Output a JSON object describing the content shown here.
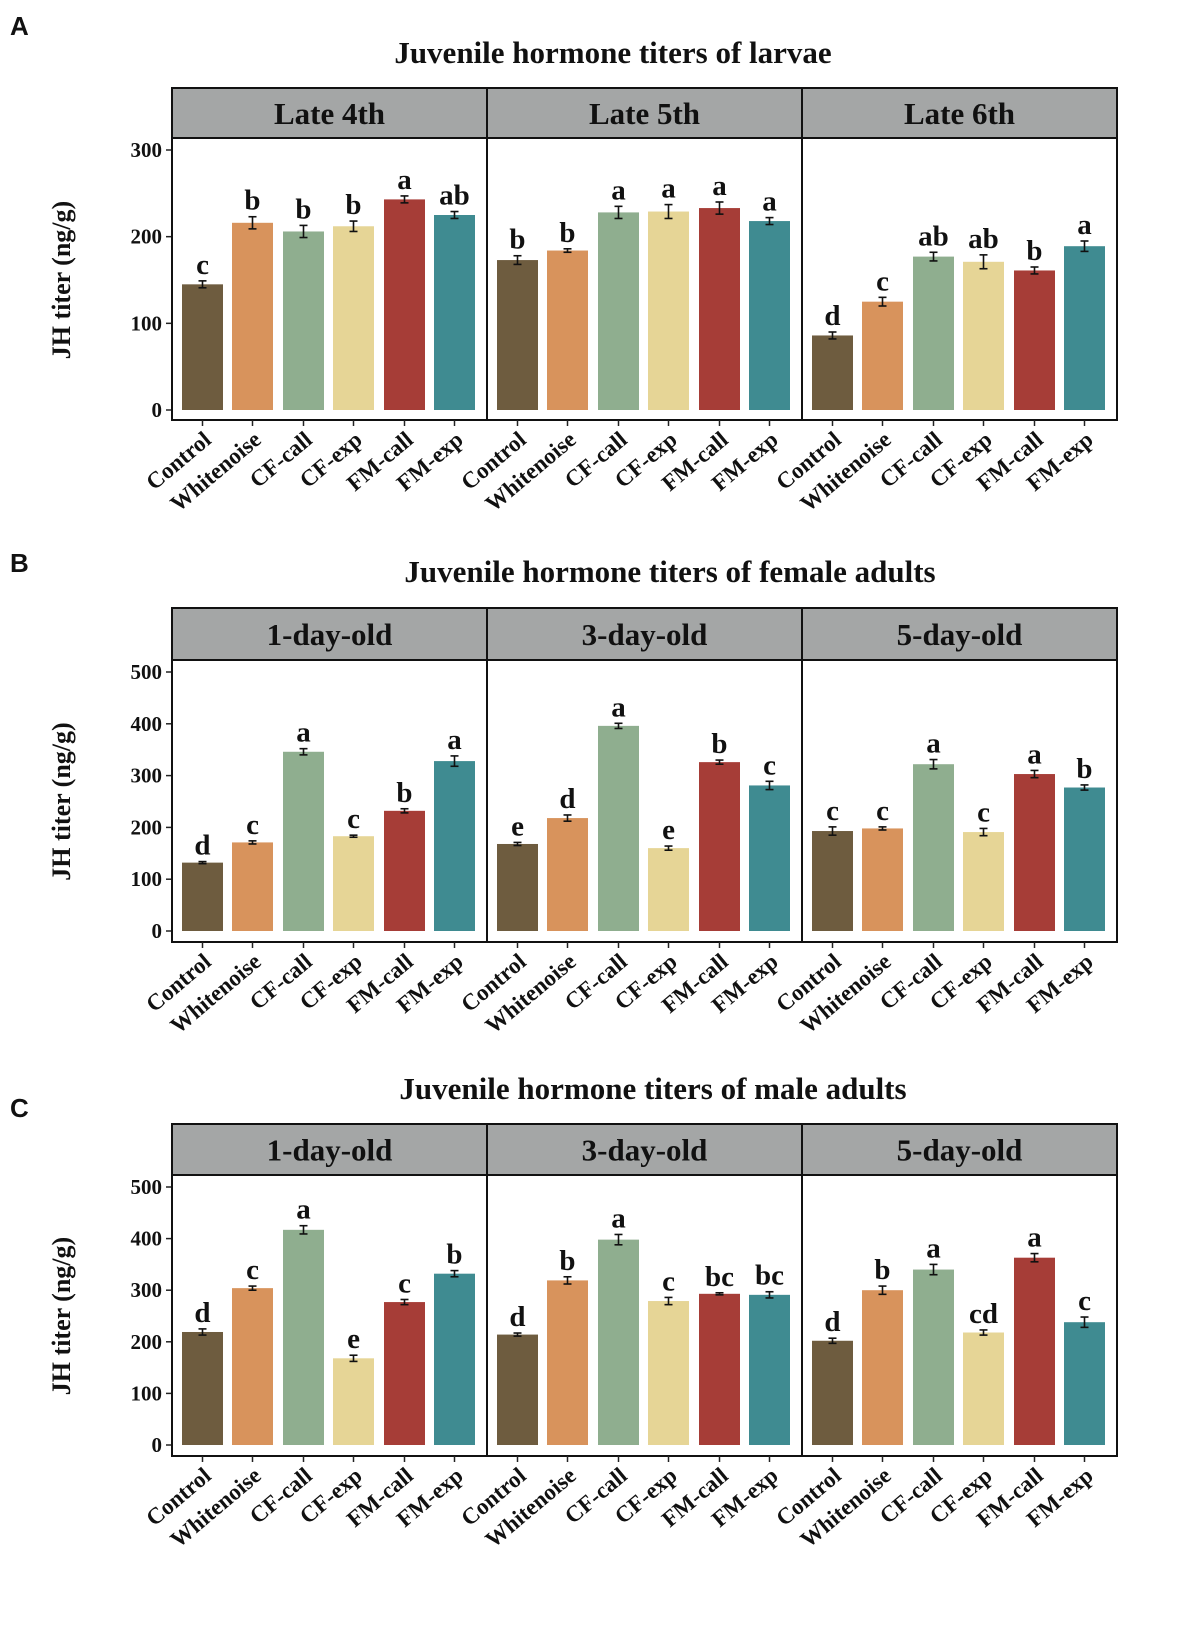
{
  "figure": {
    "categories": [
      "Control",
      "Whitenoise",
      "CF-call",
      "CF-exp",
      "FM-call",
      "FM-exp"
    ],
    "colors": [
      "#6e5c3f",
      "#d8935c",
      "#8fae8f",
      "#e6d596",
      "#a63d37",
      "#3f8b91"
    ],
    "strip_color": "#a4a6a6"
  },
  "chart_data": [
    {
      "panel_letter": "A",
      "type": "bar",
      "title": "Juvenile hormone titers of larvae",
      "ylabel": "JH titer (ng/g)",
      "ylim": [
        0,
        310
      ],
      "yticks": [
        0,
        100,
        200,
        300
      ],
      "categories": [
        "Control",
        "Whitenoise",
        "CF-call",
        "CF-exp",
        "FM-call",
        "FM-exp"
      ],
      "facets": [
        {
          "label": "Late 4th",
          "values": [
            145,
            216,
            206,
            212,
            243,
            225
          ],
          "errors": [
            4,
            7,
            7,
            6,
            4,
            4
          ],
          "letters": [
            "c",
            "b",
            "b",
            "b",
            "a",
            "ab"
          ]
        },
        {
          "label": "Late 5th",
          "values": [
            173,
            184,
            228,
            229,
            233,
            218
          ],
          "errors": [
            5,
            2,
            7,
            8,
            7,
            4
          ],
          "letters": [
            "b",
            "b",
            "a",
            "a",
            "a",
            "a"
          ]
        },
        {
          "label": "Late 6th",
          "values": [
            86,
            125,
            177,
            171,
            161,
            189
          ],
          "errors": [
            4,
            5,
            5,
            8,
            4,
            6
          ],
          "letters": [
            "d",
            "c",
            "ab",
            "ab",
            "b",
            "a"
          ]
        }
      ]
    },
    {
      "panel_letter": "B",
      "type": "bar",
      "title": "Juvenile hormone titers of female adults",
      "ylabel": "JH titer (ng/g)",
      "ylim": [
        0,
        520
      ],
      "yticks": [
        0,
        100,
        200,
        300,
        400,
        500
      ],
      "categories": [
        "Control",
        "Whitenoise",
        "CF-call",
        "CF-exp",
        "FM-call",
        "FM-exp"
      ],
      "facets": [
        {
          "label": "1-day-old",
          "values": [
            132,
            171,
            346,
            183,
            232,
            328
          ],
          "errors": [
            2,
            3,
            6,
            2,
            4,
            10
          ],
          "letters": [
            "d",
            "c",
            "a",
            "c",
            "b",
            "a"
          ]
        },
        {
          "label": "3-day-old",
          "values": [
            168,
            218,
            396,
            160,
            326,
            281
          ],
          "errors": [
            3,
            6,
            5,
            4,
            4,
            8
          ],
          "letters": [
            "e",
            "d",
            "a",
            "e",
            "b",
            "c"
          ]
        },
        {
          "label": "5-day-old",
          "values": [
            193,
            198,
            322,
            191,
            303,
            277
          ],
          "errors": [
            8,
            3,
            9,
            7,
            7,
            5
          ],
          "letters": [
            "c",
            "c",
            "a",
            "c",
            "a",
            "b"
          ]
        }
      ]
    },
    {
      "panel_letter": "C",
      "type": "bar",
      "title": "Juvenile hormone titers of male adults",
      "ylabel": "JH titer (ng/g)",
      "ylim": [
        0,
        520
      ],
      "yticks": [
        0,
        100,
        200,
        300,
        400,
        500
      ],
      "categories": [
        "Control",
        "Whitenoise",
        "CF-call",
        "CF-exp",
        "FM-call",
        "FM-exp"
      ],
      "facets": [
        {
          "label": "1-day-old",
          "values": [
            219,
            304,
            417,
            168,
            277,
            332
          ],
          "errors": [
            6,
            4,
            8,
            6,
            5,
            6
          ],
          "letters": [
            "d",
            "c",
            "a",
            "e",
            "c",
            "b"
          ]
        },
        {
          "label": "3-day-old",
          "values": [
            214,
            319,
            398,
            279,
            293,
            291
          ],
          "errors": [
            3,
            7,
            10,
            7,
            2,
            6
          ],
          "letters": [
            "d",
            "b",
            "a",
            "c",
            "bc",
            "bc"
          ]
        },
        {
          "label": "5-day-old",
          "values": [
            202,
            300,
            340,
            218,
            363,
            238
          ],
          "errors": [
            5,
            8,
            10,
            5,
            8,
            10
          ],
          "letters": [
            "d",
            "b",
            "a",
            "cd",
            "a",
            "c"
          ]
        }
      ]
    }
  ]
}
